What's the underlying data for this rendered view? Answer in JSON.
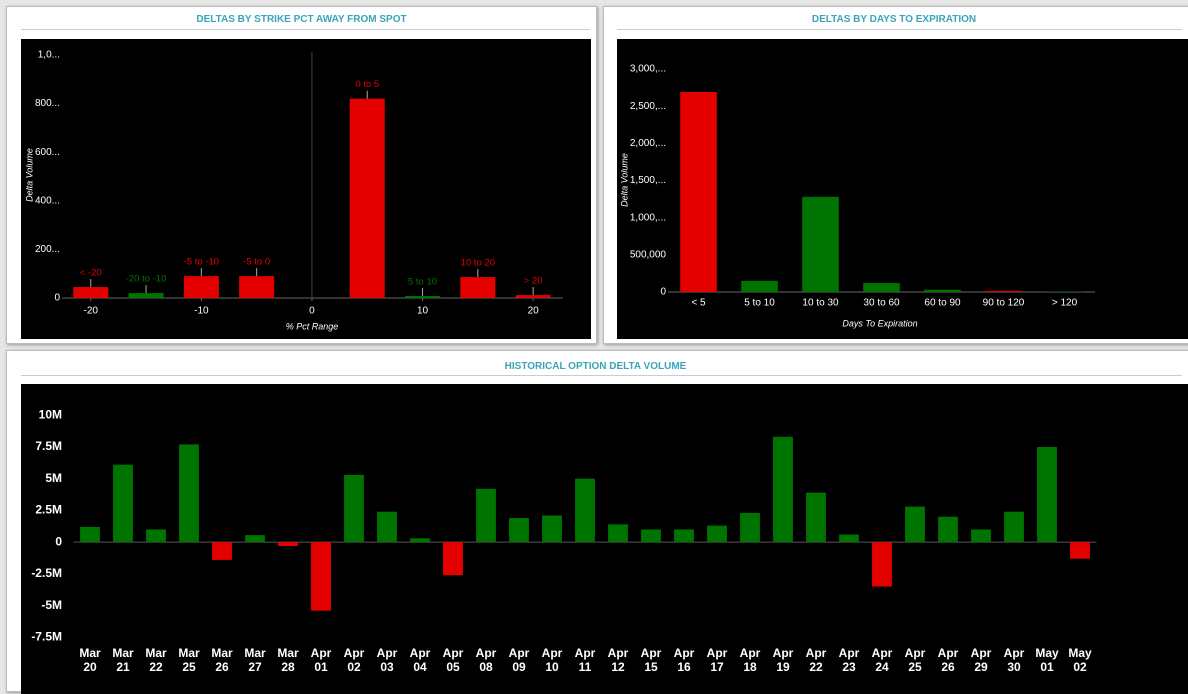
{
  "chart_data": [
    {
      "type": "bar",
      "title": "DELTAS BY STRIKE PCT AWAY FROM SPOT",
      "x_label": "% Pct Range",
      "y_label": "Delta Volume",
      "x": [
        -20,
        -15,
        -10,
        -5,
        5,
        10,
        15,
        20
      ],
      "labels": [
        "< -20",
        "-20 to -10",
        "-5 to -10",
        "-5 to 0",
        "0 to 5",
        "5 to 10",
        "10 to 20",
        "> 20"
      ],
      "values": [
        45,
        20,
        90,
        90,
        820,
        8,
        86,
        12
      ],
      "colors": [
        "#e50000",
        "#007400",
        "#e50000",
        "#e50000",
        "#e50000",
        "#007400",
        "#e50000",
        "#e50000"
      ],
      "xlim": [
        -22.6,
        22.7
      ],
      "xticks": [
        -20,
        -10,
        0,
        10,
        20
      ],
      "ylim": [
        0,
        1012
      ],
      "yticks": [
        0,
        {
          "value": 200,
          "label": "200..."
        },
        {
          "value": 400,
          "label": "400..."
        },
        {
          "value": 600,
          "label": "600..."
        },
        {
          "value": 800,
          "label": "800..."
        },
        {
          "value": 1000,
          "label": "1,0..."
        }
      ]
    },
    {
      "type": "bar",
      "title": "DELTAS BY DAYS TO EXPIRATION",
      "x_label": "Days To Expiration",
      "y_label": "Delta Volume",
      "categories": [
        "< 5",
        "5 to 10",
        "10 to 30",
        "30 to 60",
        "60 to 90",
        "90 to 120",
        "> 120"
      ],
      "values": [
        2690000,
        150000,
        1280000,
        120000,
        30000,
        15000,
        5000
      ],
      "colors": [
        "#e50000",
        "#007400",
        "#007400",
        "#007400",
        "#007400",
        "#e50000",
        "#007400"
      ],
      "ylim": [
        0,
        3080000
      ],
      "yticks": [
        0,
        {
          "value": 500000,
          "label": "500,000"
        },
        {
          "value": 1000000,
          "label": "1,000,..."
        },
        {
          "value": 1500000,
          "label": "1,500,..."
        },
        {
          "value": 2000000,
          "label": "2,000,..."
        },
        {
          "value": 2500000,
          "label": "2,500,..."
        },
        {
          "value": 3000000,
          "label": "3,000,..."
        }
      ]
    },
    {
      "type": "bar",
      "title": "HISTORICAL OPTION DELTA VOLUME",
      "categories": [
        "Mar 20",
        "Mar 21",
        "Mar 22",
        "Mar 25",
        "Mar 26",
        "Mar 27",
        "Mar 28",
        "Apr 01",
        "Apr 02",
        "Apr 03",
        "Apr 04",
        "Apr 05",
        "Apr 08",
        "Apr 09",
        "Apr 10",
        "Apr 11",
        "Apr 12",
        "Apr 15",
        "Apr 16",
        "Apr 17",
        "Apr 18",
        "Apr 19",
        "Apr 22",
        "Apr 23",
        "Apr 24",
        "Apr 25",
        "Apr 26",
        "Apr 29",
        "Apr 30",
        "May 01",
        "May 02"
      ],
      "values": [
        1200000,
        6100000,
        1000000,
        7700000,
        -1400000,
        550000,
        -300000,
        -5400000,
        5300000,
        2400000,
        300000,
        -2600000,
        4200000,
        1900000,
        2100000,
        5000000,
        1400000,
        1000000,
        1000000,
        1300000,
        2300000,
        8300000,
        3900000,
        600000,
        -3500000,
        2800000,
        2000000,
        1000000,
        2400000,
        7500000,
        -1300000
      ],
      "color": "#007400",
      "negative_color": "#e50000",
      "ylim": [
        -8500000,
        11200000
      ],
      "yticks": [
        {
          "value": -7500000,
          "label": "-7.5M"
        },
        {
          "value": -5000000,
          "label": "-5M"
        },
        {
          "value": -2500000,
          "label": "-2.5M"
        },
        0,
        {
          "value": 2500000,
          "label": "2.5M"
        },
        {
          "value": 5000000,
          "label": "5M"
        },
        {
          "value": 7500000,
          "label": "7.5M"
        },
        {
          "value": 10000000,
          "label": "10M"
        }
      ]
    }
  ]
}
